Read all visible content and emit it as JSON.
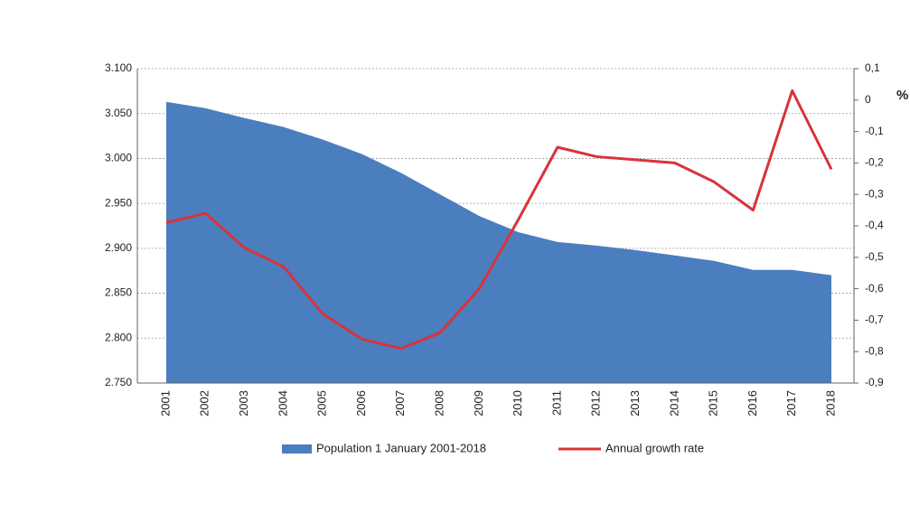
{
  "chart_data": {
    "type": "area-line",
    "categories": [
      "2001",
      "2002",
      "2003",
      "2004",
      "2005",
      "2006",
      "2007",
      "2008",
      "2009",
      "2010",
      "2011",
      "2012",
      "2013",
      "2014",
      "2015",
      "2016",
      "2017",
      "2018"
    ],
    "series": [
      {
        "name": "Population 1 January 2001-2018",
        "color": "#4a7ebf",
        "kind": "area",
        "values": [
          3063,
          3056,
          3045,
          3035,
          3021,
          3005,
          2984,
          2960,
          2936,
          2918,
          2907,
          2903,
          2898,
          2892,
          2886,
          2876,
          2876,
          2870
        ]
      },
      {
        "name": "Annual growth rate",
        "color": "#d9333a",
        "kind": "line",
        "axis": "y2",
        "values": [
          -0.39,
          -0.36,
          -0.47,
          -0.53,
          -0.68,
          -0.76,
          -0.79,
          -0.74,
          -0.6,
          -0.38,
          -0.15,
          -0.18,
          -0.19,
          -0.2,
          -0.26,
          -0.35,
          0.03,
          -0.22
        ]
      }
    ],
    "ylim": [
      2750,
      3100
    ],
    "yticks": [
      {
        "value": 2750,
        "label": "2.750"
      },
      {
        "value": 2800,
        "label": "2.800"
      },
      {
        "value": 2850,
        "label": "2.850"
      },
      {
        "value": 2900,
        "label": "2.900"
      },
      {
        "value": 2950,
        "label": "2.950"
      },
      {
        "value": 3000,
        "label": "3.000"
      },
      {
        "value": 3050,
        "label": "3.050"
      },
      {
        "value": 3100,
        "label": "3.100"
      }
    ],
    "y2lim": [
      -0.9,
      0.1
    ],
    "y2ticks": [
      {
        "value": 0.1,
        "label": "0,1"
      },
      0,
      {
        "value": -0.1,
        "label": "-0,1"
      },
      {
        "value": -0.2,
        "label": "-0,2"
      },
      {
        "value": -0.3,
        "label": "-0,3"
      },
      {
        "value": -0.4,
        "label": "-0,4"
      },
      {
        "value": -0.5,
        "label": "-0,5"
      },
      {
        "value": -0.6,
        "label": "-0,6"
      },
      {
        "value": -0.7,
        "label": "-0,7"
      },
      {
        "value": -0.8,
        "label": "-0,8"
      },
      {
        "value": -0.9,
        "label": "-0,9"
      }
    ],
    "y2label": "%",
    "grid": true,
    "legend": "bottom"
  }
}
